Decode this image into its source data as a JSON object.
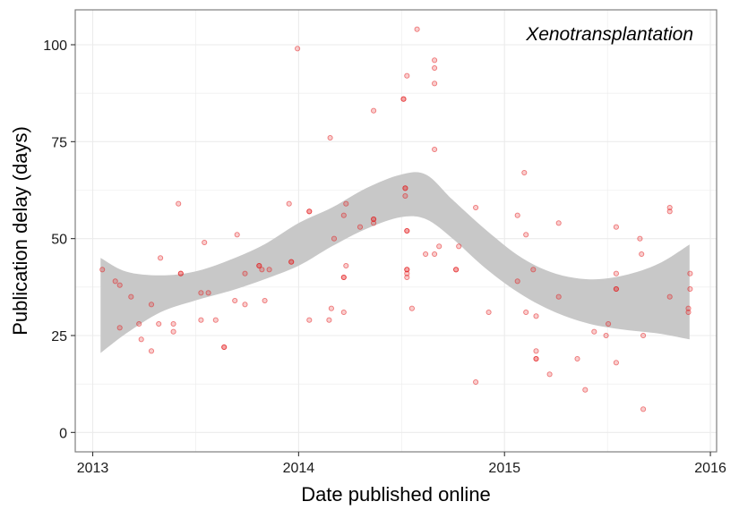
{
  "chart_data": {
    "type": "scatter",
    "title": "",
    "annotation": "Xenotransplantation",
    "xlabel": "Date published online",
    "ylabel": "Publication delay (days)",
    "xlim": [
      "2012-12-01",
      "2016-01-12"
    ],
    "ylim": [
      -5,
      109
    ],
    "x_ticks": [
      {
        "value": "2013-01-01",
        "label": "2013"
      },
      {
        "value": "2014-01-01",
        "label": "2014"
      },
      {
        "value": "2015-01-01",
        "label": "2015"
      },
      {
        "value": "2016-01-01",
        "label": "2016"
      }
    ],
    "y_ticks": [
      0,
      25,
      50,
      75,
      100
    ],
    "grid": true,
    "colors": {
      "points": "#e41a1c",
      "band": "#c8c8c8",
      "frame": "#7f7f7f",
      "grid": "#ebebeb"
    },
    "series": [
      {
        "type": "scatter",
        "points": [
          {
            "x": "2013-01-18",
            "y": 42
          },
          {
            "x": "2013-02-10",
            "y": 39
          },
          {
            "x": "2013-02-18",
            "y": 38
          },
          {
            "x": "2013-02-18",
            "y": 27
          },
          {
            "x": "2013-03-10",
            "y": 35
          },
          {
            "x": "2013-03-24",
            "y": 28
          },
          {
            "x": "2013-03-28",
            "y": 24
          },
          {
            "x": "2013-04-15",
            "y": 33
          },
          {
            "x": "2013-04-15",
            "y": 21
          },
          {
            "x": "2013-04-28",
            "y": 28
          },
          {
            "x": "2013-05-01",
            "y": 45
          },
          {
            "x": "2013-05-24",
            "y": 28
          },
          {
            "x": "2013-05-24",
            "y": 26
          },
          {
            "x": "2013-06-02",
            "y": 59
          },
          {
            "x": "2013-06-06",
            "y": 41
          },
          {
            "x": "2013-06-06",
            "y": 41
          },
          {
            "x": "2013-07-12",
            "y": 36
          },
          {
            "x": "2013-07-12",
            "y": 29
          },
          {
            "x": "2013-07-18",
            "y": 49
          },
          {
            "x": "2013-07-25",
            "y": 36
          },
          {
            "x": "2013-08-07",
            "y": 29
          },
          {
            "x": "2013-08-22",
            "y": 22
          },
          {
            "x": "2013-08-22",
            "y": 22
          },
          {
            "x": "2013-09-10",
            "y": 34
          },
          {
            "x": "2013-09-14",
            "y": 51
          },
          {
            "x": "2013-09-28",
            "y": 41
          },
          {
            "x": "2013-09-28",
            "y": 33
          },
          {
            "x": "2013-10-23",
            "y": 43
          },
          {
            "x": "2013-10-23",
            "y": 43
          },
          {
            "x": "2013-10-28",
            "y": 42
          },
          {
            "x": "2013-11-02",
            "y": 34
          },
          {
            "x": "2013-11-10",
            "y": 42
          },
          {
            "x": "2013-12-15",
            "y": 59
          },
          {
            "x": "2013-12-19",
            "y": 44
          },
          {
            "x": "2013-12-19",
            "y": 44
          },
          {
            "x": "2013-12-30",
            "y": 99
          },
          {
            "x": "2014-01-20",
            "y": 57
          },
          {
            "x": "2014-01-20",
            "y": 57
          },
          {
            "x": "2014-01-20",
            "y": 29
          },
          {
            "x": "2014-02-24",
            "y": 29
          },
          {
            "x": "2014-02-26",
            "y": 76
          },
          {
            "x": "2014-02-28",
            "y": 32
          },
          {
            "x": "2014-03-05",
            "y": 50
          },
          {
            "x": "2014-03-22",
            "y": 31
          },
          {
            "x": "2014-03-22",
            "y": 40
          },
          {
            "x": "2014-03-22",
            "y": 40
          },
          {
            "x": "2014-03-22",
            "y": 56
          },
          {
            "x": "2014-03-26",
            "y": 59
          },
          {
            "x": "2014-03-26",
            "y": 43
          },
          {
            "x": "2014-04-20",
            "y": 53
          },
          {
            "x": "2014-05-14",
            "y": 54
          },
          {
            "x": "2014-05-14",
            "y": 55
          },
          {
            "x": "2014-05-14",
            "y": 55
          },
          {
            "x": "2014-05-14",
            "y": 83
          },
          {
            "x": "2014-07-06",
            "y": 86
          },
          {
            "x": "2014-07-06",
            "y": 86
          },
          {
            "x": "2014-07-09",
            "y": 63
          },
          {
            "x": "2014-07-09",
            "y": 63
          },
          {
            "x": "2014-07-09",
            "y": 61
          },
          {
            "x": "2014-07-12",
            "y": 92
          },
          {
            "x": "2014-07-12",
            "y": 52
          },
          {
            "x": "2014-07-12",
            "y": 52
          },
          {
            "x": "2014-07-12",
            "y": 42
          },
          {
            "x": "2014-07-12",
            "y": 42
          },
          {
            "x": "2014-07-12",
            "y": 41
          },
          {
            "x": "2014-07-12",
            "y": 40
          },
          {
            "x": "2014-07-21",
            "y": 32
          },
          {
            "x": "2014-07-30",
            "y": 104
          },
          {
            "x": "2014-08-14",
            "y": 46
          },
          {
            "x": "2014-08-30",
            "y": 96
          },
          {
            "x": "2014-08-30",
            "y": 94
          },
          {
            "x": "2014-08-30",
            "y": 90
          },
          {
            "x": "2014-08-30",
            "y": 73
          },
          {
            "x": "2014-08-30",
            "y": 46
          },
          {
            "x": "2014-09-07",
            "y": 48
          },
          {
            "x": "2014-10-07",
            "y": 42
          },
          {
            "x": "2014-10-07",
            "y": 42
          },
          {
            "x": "2014-10-12",
            "y": 48
          },
          {
            "x": "2014-11-11",
            "y": 58
          },
          {
            "x": "2014-11-11",
            "y": 13
          },
          {
            "x": "2014-12-04",
            "y": 31
          },
          {
            "x": "2015-01-24",
            "y": 56
          },
          {
            "x": "2015-01-24",
            "y": 39
          },
          {
            "x": "2015-02-05",
            "y": 67
          },
          {
            "x": "2015-02-08",
            "y": 51
          },
          {
            "x": "2015-02-08",
            "y": 31
          },
          {
            "x": "2015-02-21",
            "y": 42
          },
          {
            "x": "2015-02-26",
            "y": 30
          },
          {
            "x": "2015-02-26",
            "y": 21
          },
          {
            "x": "2015-02-26",
            "y": 19
          },
          {
            "x": "2015-02-26",
            "y": 19
          },
          {
            "x": "2015-03-22",
            "y": 15
          },
          {
            "x": "2015-04-07",
            "y": 54
          },
          {
            "x": "2015-04-07",
            "y": 35
          },
          {
            "x": "2015-05-10",
            "y": 19
          },
          {
            "x": "2015-05-24",
            "y": 11
          },
          {
            "x": "2015-06-09",
            "y": 26
          },
          {
            "x": "2015-06-30",
            "y": 25
          },
          {
            "x": "2015-07-04",
            "y": 28
          },
          {
            "x": "2015-07-18",
            "y": 53
          },
          {
            "x": "2015-07-18",
            "y": 41
          },
          {
            "x": "2015-07-18",
            "y": 37
          },
          {
            "x": "2015-07-18",
            "y": 37
          },
          {
            "x": "2015-07-18",
            "y": 18
          },
          {
            "x": "2015-08-29",
            "y": 50
          },
          {
            "x": "2015-09-01",
            "y": 46
          },
          {
            "x": "2015-09-04",
            "y": 25
          },
          {
            "x": "2015-09-04",
            "y": 6
          },
          {
            "x": "2015-10-21",
            "y": 58
          },
          {
            "x": "2015-10-21",
            "y": 57
          },
          {
            "x": "2015-10-21",
            "y": 35
          },
          {
            "x": "2015-11-23",
            "y": 32
          },
          {
            "x": "2015-11-23",
            "y": 31
          },
          {
            "x": "2015-11-26",
            "y": 41
          },
          {
            "x": "2015-11-26",
            "y": 37
          }
        ]
      },
      {
        "type": "confidence-band",
        "points": [
          {
            "x": "2013-01-15",
            "lower": 20.5,
            "upper": 45
          },
          {
            "x": "2013-03-01",
            "lower": 25.5,
            "upper": 41.5
          },
          {
            "x": "2013-05-01",
            "lower": 31,
            "upper": 40.5
          },
          {
            "x": "2013-07-01",
            "lower": 34,
            "upper": 41.5
          },
          {
            "x": "2013-09-01",
            "lower": 36.5,
            "upper": 44.5
          },
          {
            "x": "2013-11-01",
            "lower": 39.5,
            "upper": 48.5
          },
          {
            "x": "2014-01-01",
            "lower": 43,
            "upper": 54
          },
          {
            "x": "2014-03-01",
            "lower": 48,
            "upper": 58
          },
          {
            "x": "2014-05-01",
            "lower": 52.5,
            "upper": 63
          },
          {
            "x": "2014-07-01",
            "lower": 55.5,
            "upper": 66.5
          },
          {
            "x": "2014-08-15",
            "lower": 55,
            "upper": 66.5
          },
          {
            "x": "2014-10-01",
            "lower": 50,
            "upper": 60
          },
          {
            "x": "2014-12-01",
            "lower": 42,
            "upper": 52
          },
          {
            "x": "2015-02-01",
            "lower": 35.5,
            "upper": 45
          },
          {
            "x": "2015-04-01",
            "lower": 31,
            "upper": 41
          },
          {
            "x": "2015-06-01",
            "lower": 28,
            "upper": 39.5
          },
          {
            "x": "2015-08-01",
            "lower": 26.5,
            "upper": 40.5
          },
          {
            "x": "2015-10-01",
            "lower": 25.5,
            "upper": 43.5
          },
          {
            "x": "2015-11-25",
            "lower": 24,
            "upper": 48.5
          }
        ]
      }
    ]
  }
}
